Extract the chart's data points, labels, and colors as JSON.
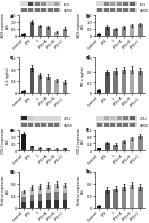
{
  "panels": [
    {
      "label": "a",
      "blot_labels": [
        "iNOS",
        "GAPDH"
      ],
      "ylabel": "iNOS expression\n(AU)",
      "categories": [
        "Control",
        "LPS",
        "L",
        "LPS+A",
        "LPS+B",
        "LPS+C"
      ],
      "values": [
        0.12,
        1.0,
        0.7,
        0.6,
        0.28,
        0.5
      ],
      "colors": [
        "#1a1a1a",
        "#555555",
        "#777777",
        "#888888",
        "#aaaaaa",
        "#888888"
      ],
      "errors": [
        0.04,
        0.13,
        0.1,
        0.09,
        0.06,
        0.09
      ],
      "ylim": [
        0,
        1.5
      ],
      "yticks": [
        0,
        0.5,
        1.0,
        1.5
      ],
      "has_blot": true
    },
    {
      "label": "b",
      "blot_labels": [
        "iNOS",
        "GAPDH"
      ],
      "ylabel": "iNOS expression\n(AU)",
      "categories": [
        "Control",
        "LPS",
        "L",
        "LPS+A",
        "LPS+B",
        "LPS+C"
      ],
      "values": [
        0.12,
        0.65,
        0.5,
        0.6,
        0.75,
        0.82
      ],
      "colors": [
        "#1a1a1a",
        "#555555",
        "#777777",
        "#888888",
        "#aaaaaa",
        "#888888"
      ],
      "errors": [
        0.04,
        0.14,
        0.08,
        0.1,
        0.12,
        0.11
      ],
      "ylim": [
        0,
        1.5
      ],
      "yticks": [
        0,
        0.5,
        1.0,
        1.5
      ],
      "has_blot": true
    },
    {
      "label": "c",
      "blot_labels": [],
      "ylabel": "IL-6 (pg/mL)",
      "categories": [
        "Control",
        "LPS",
        "L",
        "LPS+A",
        "LPS+B",
        "LPS+C"
      ],
      "values": [
        0.08,
        0.85,
        0.6,
        0.55,
        0.42,
        0.38
      ],
      "colors": [
        "#1a1a1a",
        "#555555",
        "#777777",
        "#888888",
        "#aaaaaa",
        "#888888"
      ],
      "errors": [
        0.03,
        0.11,
        0.09,
        0.08,
        0.06,
        0.07
      ],
      "ylim": [
        0,
        1.2
      ],
      "yticks": [
        0,
        0.4,
        0.8,
        1.2
      ],
      "has_blot": false
    },
    {
      "label": "d",
      "blot_labels": [],
      "ylabel": "TNF-a (pg/mL)",
      "categories": [
        "Control",
        "LPS",
        "L",
        "LPS+A",
        "LPS+B",
        "LPS+C"
      ],
      "values": [
        0.08,
        0.58,
        0.62,
        0.65,
        0.66,
        0.62
      ],
      "colors": [
        "#1a1a1a",
        "#555555",
        "#777777",
        "#888888",
        "#aaaaaa",
        "#888888"
      ],
      "errors": [
        0.03,
        0.08,
        0.08,
        0.09,
        0.09,
        0.08
      ],
      "ylim": [
        0,
        1.0
      ],
      "yticks": [
        0,
        0.3,
        0.6,
        1.0
      ],
      "has_blot": false
    },
    {
      "label": "e",
      "blot_labels": [
        "COX-2",
        "GAPDH"
      ],
      "ylabel": "COX-2 expression\n(AU)",
      "categories": [
        "Control",
        "LPS",
        "L",
        "LPS+A",
        "LPS+B",
        "LPS+C"
      ],
      "values": [
        1.15,
        0.28,
        0.18,
        0.14,
        0.12,
        0.14
      ],
      "colors": [
        "#1a1a1a",
        "#555555",
        "#777777",
        "#888888",
        "#aaaaaa",
        "#888888"
      ],
      "errors": [
        0.16,
        0.05,
        0.03,
        0.03,
        0.02,
        0.03
      ],
      "ylim": [
        0,
        1.5
      ],
      "yticks": [
        0,
        0.5,
        1.0,
        1.5
      ],
      "has_blot": true
    },
    {
      "label": "f",
      "blot_labels": [
        "COX-2",
        "GAPDH"
      ],
      "ylabel": "COX-2 expression\n(AU)",
      "categories": [
        "Control",
        "LPS",
        "L",
        "LPS+A",
        "LPS+B",
        "LPS+C"
      ],
      "values": [
        0.1,
        0.42,
        0.33,
        0.52,
        0.68,
        0.82
      ],
      "colors": [
        "#1a1a1a",
        "#555555",
        "#777777",
        "#888888",
        "#aaaaaa",
        "#888888"
      ],
      "errors": [
        0.03,
        0.07,
        0.06,
        0.08,
        0.1,
        0.12
      ],
      "ylim": [
        0,
        1.2
      ],
      "yticks": [
        0,
        0.4,
        0.8,
        1.2
      ],
      "has_blot": true
    },
    {
      "label": "g",
      "blot_labels": [],
      "ylabel": "Relative expression\n(AU)",
      "categories": [
        "Control",
        "LPS",
        "L",
        "LPS+A",
        "LPS+B",
        "LPS+C"
      ],
      "values": [
        0.55,
        0.68,
        0.72,
        0.76,
        0.8,
        0.76
      ],
      "colors": [
        "#1a1a1a",
        "#555555",
        "#777777",
        "#888888",
        "#aaaaaa",
        "#888888"
      ],
      "errors": [
        0.06,
        0.08,
        0.08,
        0.09,
        0.09,
        0.08
      ],
      "ylim": [
        0,
        1.2
      ],
      "yticks": [
        0,
        0.4,
        0.8,
        1.2
      ],
      "has_blot": false,
      "stacked": true,
      "stack_values": [
        [
          0.18,
          0.22,
          0.23,
          0.25,
          0.26,
          0.24
        ],
        [
          0.18,
          0.22,
          0.23,
          0.24,
          0.25,
          0.24
        ],
        [
          0.19,
          0.24,
          0.26,
          0.27,
          0.29,
          0.28
        ]
      ],
      "stack_colors": [
        "#333333",
        "#777777",
        "#bbbbbb"
      ]
    },
    {
      "label": "h",
      "blot_labels": [],
      "ylabel": "Relative expression\n(AU)",
      "categories": [
        "Control",
        "LPS",
        "L",
        "LPS+A",
        "LPS+B",
        "LPS+C"
      ],
      "values": [
        0.04,
        0.44,
        0.48,
        0.52,
        0.58,
        0.52
      ],
      "colors": [
        "#1a1a1a",
        "#555555",
        "#777777",
        "#888888",
        "#aaaaaa",
        "#888888"
      ],
      "errors": [
        0.02,
        0.07,
        0.07,
        0.08,
        0.08,
        0.07
      ],
      "ylim": [
        0,
        0.9
      ],
      "yticks": [
        0,
        0.3,
        0.6,
        0.9
      ],
      "has_blot": false
    }
  ],
  "bg_color": "#ffffff",
  "bar_width": 0.55,
  "tick_font_size": 2.5,
  "ylabel_font_size": 2.2,
  "label_font_size": 4.0
}
